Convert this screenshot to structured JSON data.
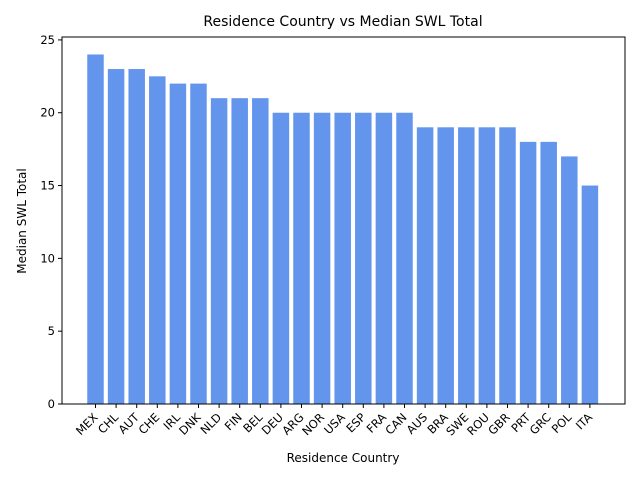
{
  "chart_data": {
    "type": "bar",
    "title": "Residence Country vs Median SWL Total",
    "xlabel": "Residence Country",
    "ylabel": "Median SWL Total",
    "categories": [
      "MEX",
      "CHL",
      "AUT",
      "CHE",
      "IRL",
      "DNK",
      "NLD",
      "FIN",
      "BEL",
      "DEU",
      "ARG",
      "NOR",
      "USA",
      "ESP",
      "FRA",
      "CAN",
      "AUS",
      "BRA",
      "SWE",
      "ROU",
      "GBR",
      "PRT",
      "GRC",
      "POL",
      "ITA"
    ],
    "values": [
      24,
      23,
      23,
      22.5,
      22,
      22,
      21,
      21,
      21,
      20,
      20,
      20,
      20,
      20,
      20,
      20,
      19,
      19,
      19,
      19,
      19,
      18,
      18,
      17,
      15
    ],
    "ylim": [
      0,
      25.2
    ],
    "yticks": [
      0,
      5,
      10,
      15,
      20,
      25
    ],
    "bar_color": "#6495ed",
    "grid": false,
    "legend": "none"
  }
}
